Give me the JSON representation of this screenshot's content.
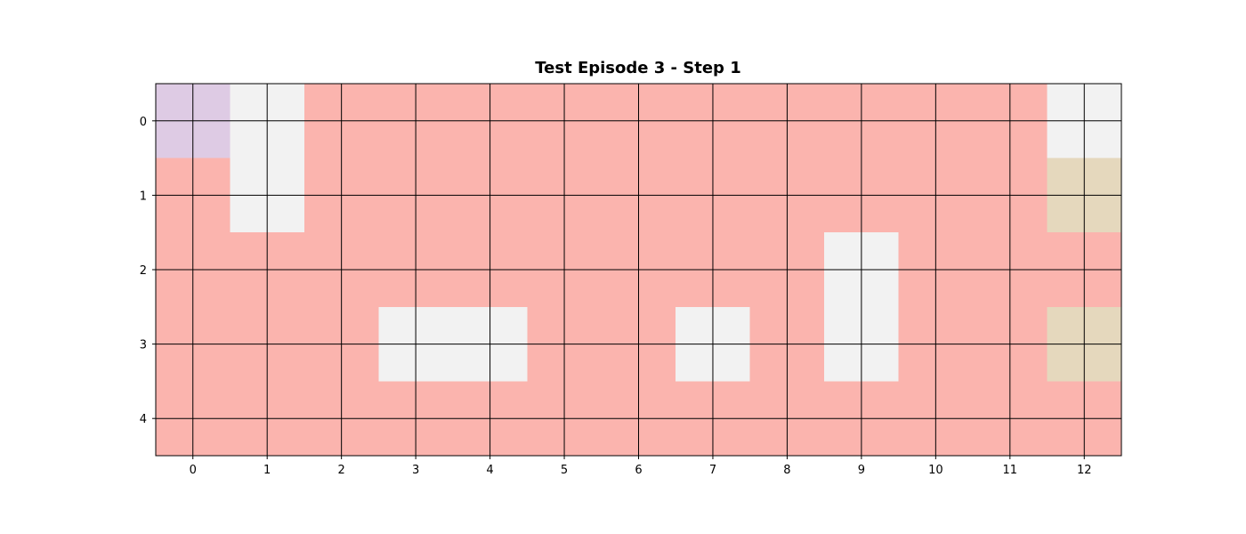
{
  "chart_data": {
    "type": "heatmap",
    "title": "Test Episode 3 - Step 1",
    "xlabel": "",
    "ylabel": "",
    "x_ticks": [
      "0",
      "1",
      "2",
      "3",
      "4",
      "5",
      "6",
      "7",
      "8",
      "9",
      "10",
      "11",
      "12"
    ],
    "y_ticks": [
      "0",
      "1",
      "2",
      "3",
      "4"
    ],
    "xlim": [
      -0.5,
      12.5
    ],
    "ylim": [
      4.5,
      -0.5
    ],
    "grid": true,
    "colors": {
      "0": "#fbb4ae",
      "1": "#f2f2f2",
      "2": "#decbe4",
      "3": "#e5d8bd"
    },
    "grid_values": [
      [
        2,
        1,
        0,
        0,
        0,
        0,
        0,
        0,
        0,
        0,
        0,
        0,
        1
      ],
      [
        0,
        1,
        0,
        0,
        0,
        0,
        0,
        0,
        0,
        0,
        0,
        0,
        3
      ],
      [
        0,
        0,
        0,
        0,
        0,
        0,
        0,
        0,
        0,
        1,
        0,
        0,
        0
      ],
      [
        0,
        0,
        0,
        1,
        1,
        0,
        0,
        1,
        0,
        1,
        0,
        0,
        3
      ],
      [
        0,
        0,
        0,
        0,
        0,
        0,
        0,
        0,
        0,
        0,
        0,
        0,
        0
      ]
    ]
  }
}
